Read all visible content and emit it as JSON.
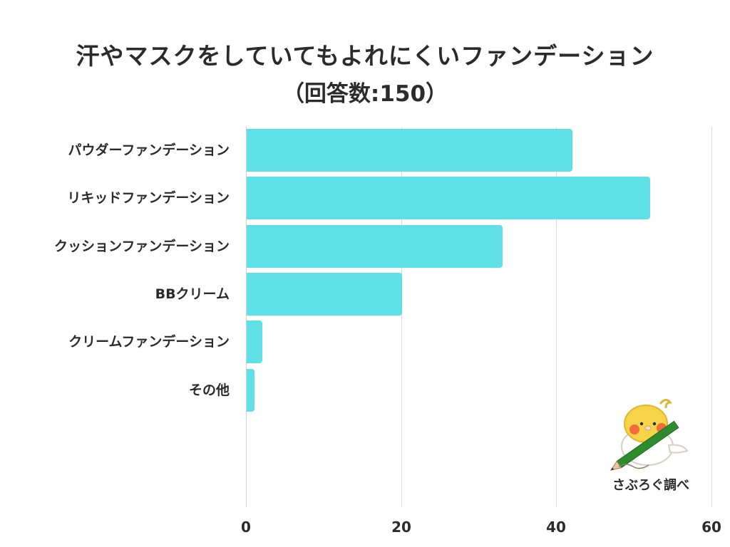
{
  "title": {
    "line1": "汗やマスクをしていてもよれにくいファンデーション",
    "line2": "（回答数:150）"
  },
  "colors": {
    "bar": "#5ee0e6",
    "grid": "#d9d9d9",
    "text": "#2b2b2b",
    "pencil": "#2e8b2e",
    "bird": "#f7d34a",
    "cheek": "#f26b3a"
  },
  "logo": {
    "icon": "cockatiel-with-pencil-icon",
    "text": "さぶろぐ調べ"
  },
  "chart_data": {
    "type": "bar",
    "orientation": "horizontal",
    "title": "汗やマスクをしていてもよれにくいファンデーション（回答数:150）",
    "categories": [
      "パウダーファンデーション",
      "リキッドファンデーション",
      "クッションファンデーション",
      "BBクリーム",
      "クリームファンデーション",
      "その他"
    ],
    "values": [
      42,
      52,
      33,
      20,
      2,
      1
    ],
    "xlabel": "",
    "ylabel": "",
    "xlim": [
      0,
      60
    ],
    "xticks": [
      "0",
      "20",
      "40",
      "60"
    ],
    "grid": true,
    "legend": null,
    "bar_color": "#5ee0e6"
  }
}
